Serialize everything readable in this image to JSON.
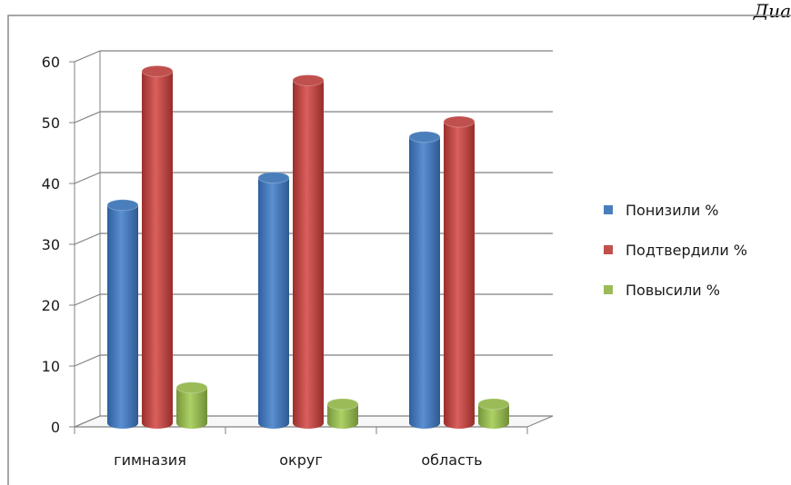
{
  "header": {
    "corner_text": "Диа"
  },
  "chart_data": {
    "type": "bar",
    "categories": [
      "гимназия",
      "округ",
      "область"
    ],
    "series": [
      {
        "name": "Понизили %",
        "values": [
          36,
          40.5,
          47.2
        ]
      },
      {
        "name": "Подтвердили %",
        "values": [
          58,
          56.5,
          49.7
        ]
      },
      {
        "name": "Повысили %",
        "values": [
          6,
          3.3,
          3.3
        ]
      }
    ],
    "yticks": [
      0,
      10,
      20,
      30,
      40,
      50,
      60
    ],
    "ylim": [
      0,
      60
    ],
    "grid": true,
    "legend_position": "right",
    "colors": [
      "#4a7ebb",
      "#c0504d",
      "#9bbb59"
    ]
  }
}
